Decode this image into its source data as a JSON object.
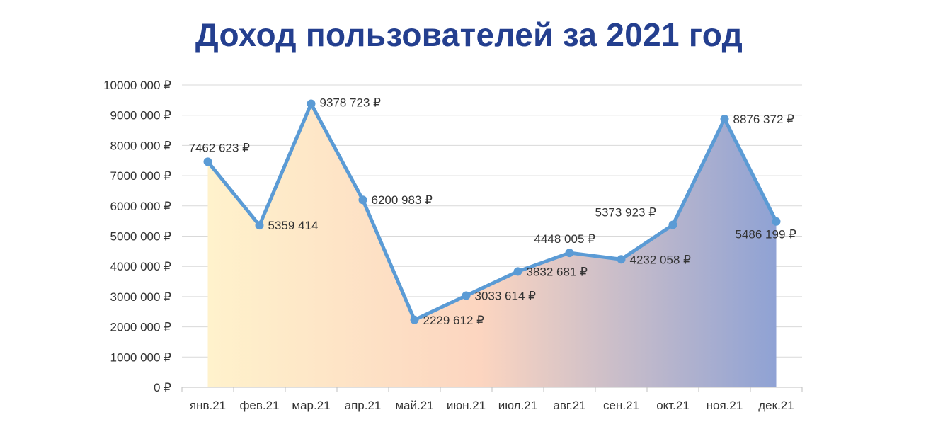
{
  "chart_data": {
    "type": "area",
    "title": "Доход пользователей за 2021 год",
    "xlabel": "",
    "ylabel": "",
    "categories": [
      "янв.21",
      "фев.21",
      "мар.21",
      "апр.21",
      "май.21",
      "июн.21",
      "июл.21",
      "авг.21",
      "сен.21",
      "окт.21",
      "ноя.21",
      "дек.21"
    ],
    "series": [
      {
        "values": [
          7462623,
          5359414,
          9378723,
          6200983,
          2229612,
          3033614,
          3832681,
          4448005,
          4232058,
          5373923,
          8876372,
          5486199
        ]
      }
    ],
    "data_labels": [
      "7462 623 ₽",
      "5359 414",
      "9378 723 ₽",
      "6200 983 ₽",
      "2229 612 ₽",
      "3033 614 ₽",
      "3832 681 ₽",
      "4448 005 ₽",
      "4232 058 ₽",
      "5373 923 ₽",
      "8876 372 ₽",
      "5486 199 ₽"
    ],
    "y_tick_labels": [
      "0 ₽",
      "1000 000 ₽",
      "2000 000 ₽",
      "3000 000 ₽",
      "4000 000 ₽",
      "5000 000 ₽",
      "6000 000 ₽",
      "7000 000 ₽",
      "8000 000 ₽",
      "9000 000 ₽",
      "10000 000 ₽"
    ],
    "ylim": [
      0,
      10000000
    ],
    "y_step": 1000000,
    "grid": true,
    "legend": "none"
  },
  "colors": {
    "title": "#243f8f",
    "line": "#5b9bd5",
    "marker": "#5b9bd5",
    "grid": "#d9d9d9",
    "axis": "#bfbfbf",
    "text": "#333333",
    "fill_gradient": [
      "#fff2cc",
      "#fcd5c0",
      "#8fa2d4"
    ]
  }
}
